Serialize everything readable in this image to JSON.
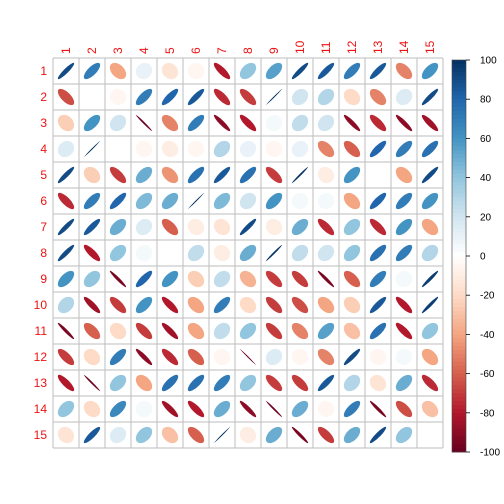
{
  "chart_data": {
    "type": "heatmap",
    "method": "ellipse",
    "title": "",
    "row_labels": [
      "1",
      "2",
      "3",
      "4",
      "5",
      "6",
      "7",
      "8",
      "9",
      "10",
      "11",
      "12",
      "13",
      "14",
      "15"
    ],
    "col_labels": [
      "1",
      "2",
      "3",
      "4",
      "5",
      "6",
      "7",
      "8",
      "9",
      "10",
      "11",
      "12",
      "13",
      "14",
      "15"
    ],
    "label_color": "#ee1111",
    "colorbar": {
      "range": [
        -100,
        100
      ],
      "ticks": [
        -100,
        -80,
        -60,
        -40,
        -20,
        0,
        20,
        40,
        60,
        80,
        100
      ],
      "tick_labels": [
        "-100",
        "-80",
        "-60",
        "-40",
        "-20",
        "0",
        "20",
        "40",
        "60",
        "80",
        "100"
      ],
      "colors": [
        "#67001F",
        "#B2182B",
        "#D6604D",
        "#F4A582",
        "#FDDBC7",
        "#FFFFFF",
        "#D1E5F0",
        "#92C5DE",
        "#4393C3",
        "#2166AC",
        "#053061"
      ]
    },
    "values": [
      [
        90,
        70,
        -40,
        10,
        -15,
        -5,
        -80,
        40,
        55,
        90,
        85,
        70,
        85,
        -50,
        60
      ],
      [
        -65,
        0,
        -5,
        70,
        80,
        85,
        -75,
        -70,
        99,
        20,
        30,
        -20,
        -50,
        15,
        90
      ],
      [
        -25,
        60,
        20,
        -98,
        -50,
        70,
        -90,
        -80,
        5,
        25,
        20,
        -90,
        -75,
        -90,
        -85
      ],
      [
        15,
        99,
        0,
        -5,
        -10,
        -5,
        30,
        10,
        -5,
        10,
        -50,
        -60,
        80,
        70,
        75
      ],
      [
        90,
        -25,
        -70,
        50,
        -45,
        75,
        85,
        75,
        -70,
        98,
        -10,
        60,
        0,
        -40,
        90
      ],
      [
        -75,
        70,
        80,
        45,
        50,
        99,
        45,
        20,
        60,
        5,
        5,
        -40,
        80,
        70,
        60
      ],
      [
        90,
        85,
        50,
        15,
        -60,
        -10,
        -15,
        90,
        -10,
        50,
        -75,
        40,
        -75,
        60,
        -40
      ],
      [
        90,
        -80,
        40,
        5,
        0,
        25,
        -10,
        50,
        98,
        25,
        20,
        40,
        75,
        70,
        30
      ],
      [
        60,
        40,
        -95,
        80,
        60,
        -25,
        25,
        -35,
        -70,
        -70,
        -95,
        -60,
        70,
        5,
        95
      ],
      [
        30,
        -85,
        -70,
        60,
        -80,
        -40,
        70,
        -20,
        -70,
        -65,
        -40,
        -25,
        85,
        -80,
        95
      ],
      [
        -95,
        -60,
        -20,
        -70,
        -85,
        -40,
        25,
        40,
        -70,
        -50,
        55,
        -30,
        75,
        -80,
        40
      ],
      [
        -70,
        -20,
        70,
        -90,
        -75,
        -60,
        -5,
        -99,
        15,
        -5,
        -50,
        90,
        -5,
        5,
        -40
      ],
      [
        -80,
        -98,
        40,
        -40,
        75,
        75,
        70,
        40,
        -70,
        -70,
        85,
        30,
        -15,
        50,
        -75
      ],
      [
        40,
        -20,
        65,
        5,
        -85,
        -80,
        50,
        -90,
        -98,
        50,
        -5,
        70,
        -95,
        -65,
        -30
      ],
      [
        -15,
        85,
        15,
        40,
        -30,
        -60,
        99,
        -10,
        50,
        -95,
        -70,
        50,
        90,
        40,
        0
      ]
    ]
  }
}
